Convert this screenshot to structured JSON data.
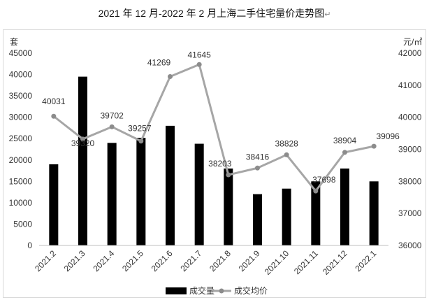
{
  "title": "2021 年 12 月-2022 年 2 月上海二手住宅量价走势图",
  "title_mark": "↵",
  "chart_data": {
    "type": "bar+line",
    "categories": [
      "2021.2",
      "2021.3",
      "2021.4",
      "2021.5",
      "2021.6",
      "2021.7",
      "2021.8",
      "2021.9",
      "2021.10",
      "2021.11",
      "2021.12",
      "2022.1"
    ],
    "series": [
      {
        "name": "成交量",
        "type": "bar",
        "axis": "left",
        "color": "#000000",
        "values": [
          19000,
          39500,
          24000,
          25200,
          28000,
          23800,
          18000,
          12000,
          13300,
          15000,
          18000,
          15000
        ]
      },
      {
        "name": "成交均价",
        "type": "line",
        "axis": "right",
        "color": "#a6a6a6",
        "values": [
          40031,
          39320,
          39702,
          39257,
          41269,
          41645,
          38203,
          38416,
          38828,
          37698,
          38904,
          39096
        ],
        "labels": [
          "40031",
          "39320",
          "39702",
          "39257",
          "41269",
          "41645",
          "38203",
          "38416",
          "38828",
          "37698",
          "38904",
          "39096"
        ]
      }
    ],
    "left_axis": {
      "unit": "套",
      "ylim": [
        0,
        45000
      ],
      "ticks": [
        "0",
        "5000",
        "10000",
        "15000",
        "20000",
        "25000",
        "30000",
        "35000",
        "40000",
        "45000"
      ]
    },
    "right_axis": {
      "unit": "元/㎡",
      "ylim": [
        36000,
        42000
      ],
      "ticks": [
        "36000",
        "37000",
        "38000",
        "39000",
        "40000",
        "41000",
        "42000"
      ]
    },
    "grid": false,
    "legend_position": "bottom"
  }
}
